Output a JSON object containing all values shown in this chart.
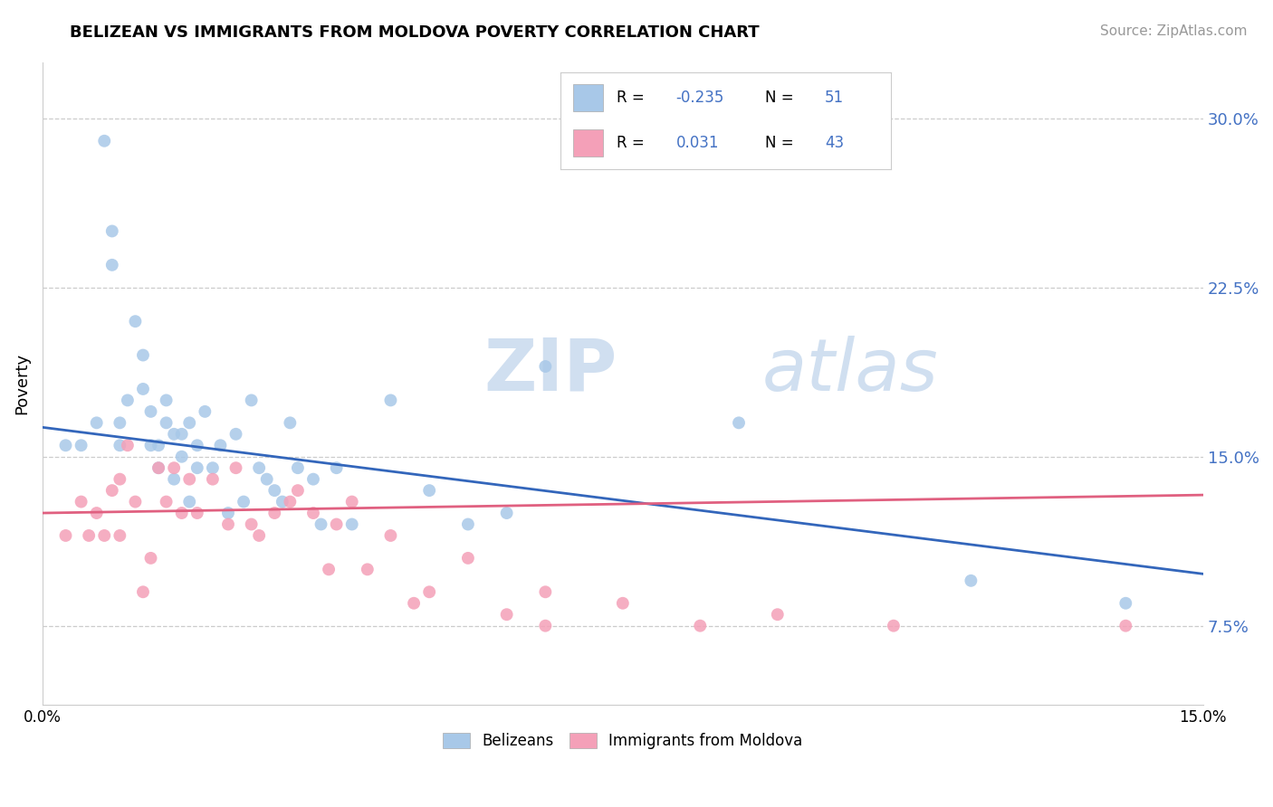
{
  "title": "BELIZEAN VS IMMIGRANTS FROM MOLDOVA POVERTY CORRELATION CHART",
  "source": "Source: ZipAtlas.com",
  "ylabel": "Poverty",
  "y_ticks": [
    0.075,
    0.15,
    0.225,
    0.3
  ],
  "y_tick_labels": [
    "7.5%",
    "15.0%",
    "22.5%",
    "30.0%"
  ],
  "x_min": 0.0,
  "x_max": 0.15,
  "y_min": 0.04,
  "y_max": 0.325,
  "legend_label1": "Belizeans",
  "legend_label2": "Immigrants from Moldova",
  "R1": "-0.235",
  "N1": "51",
  "R2": "0.031",
  "N2": "43",
  "color_blue": "#A8C8E8",
  "color_pink": "#F4A0B8",
  "color_blue_line": "#3366BB",
  "color_pink_line": "#E06080",
  "watermark_zip": "ZIP",
  "watermark_atlas": "atlas",
  "watermark_color": "#D0DFF0",
  "background_color": "#FFFFFF",
  "blue_line_x0": 0.0,
  "blue_line_y0": 0.163,
  "blue_line_x1": 0.15,
  "blue_line_y1": 0.098,
  "pink_line_x0": 0.0,
  "pink_line_y0": 0.125,
  "pink_line_x1": 0.15,
  "pink_line_y1": 0.133,
  "belizean_x": [
    0.003,
    0.005,
    0.007,
    0.008,
    0.009,
    0.009,
    0.01,
    0.01,
    0.011,
    0.012,
    0.013,
    0.013,
    0.014,
    0.014,
    0.015,
    0.015,
    0.016,
    0.016,
    0.017,
    0.017,
    0.018,
    0.018,
    0.019,
    0.019,
    0.02,
    0.02,
    0.021,
    0.022,
    0.023,
    0.024,
    0.025,
    0.026,
    0.027,
    0.028,
    0.029,
    0.03,
    0.031,
    0.032,
    0.033,
    0.035,
    0.036,
    0.038,
    0.04,
    0.045,
    0.05,
    0.055,
    0.06,
    0.065,
    0.09,
    0.12,
    0.14
  ],
  "belizean_y": [
    0.155,
    0.155,
    0.165,
    0.29,
    0.25,
    0.235,
    0.165,
    0.155,
    0.175,
    0.21,
    0.195,
    0.18,
    0.17,
    0.155,
    0.155,
    0.145,
    0.175,
    0.165,
    0.14,
    0.16,
    0.16,
    0.15,
    0.165,
    0.13,
    0.155,
    0.145,
    0.17,
    0.145,
    0.155,
    0.125,
    0.16,
    0.13,
    0.175,
    0.145,
    0.14,
    0.135,
    0.13,
    0.165,
    0.145,
    0.14,
    0.12,
    0.145,
    0.12,
    0.175,
    0.135,
    0.12,
    0.125,
    0.19,
    0.165,
    0.095,
    0.085
  ],
  "moldova_x": [
    0.003,
    0.005,
    0.006,
    0.007,
    0.008,
    0.009,
    0.01,
    0.01,
    0.011,
    0.012,
    0.013,
    0.014,
    0.015,
    0.016,
    0.017,
    0.018,
    0.019,
    0.02,
    0.022,
    0.024,
    0.025,
    0.027,
    0.028,
    0.03,
    0.032,
    0.033,
    0.035,
    0.037,
    0.038,
    0.04,
    0.042,
    0.045,
    0.048,
    0.05,
    0.055,
    0.06,
    0.065,
    0.065,
    0.075,
    0.085,
    0.095,
    0.11,
    0.14
  ],
  "moldova_y": [
    0.115,
    0.13,
    0.115,
    0.125,
    0.115,
    0.135,
    0.14,
    0.115,
    0.155,
    0.13,
    0.09,
    0.105,
    0.145,
    0.13,
    0.145,
    0.125,
    0.14,
    0.125,
    0.14,
    0.12,
    0.145,
    0.12,
    0.115,
    0.125,
    0.13,
    0.135,
    0.125,
    0.1,
    0.12,
    0.13,
    0.1,
    0.115,
    0.085,
    0.09,
    0.105,
    0.08,
    0.09,
    0.075,
    0.085,
    0.075,
    0.08,
    0.075,
    0.075
  ]
}
